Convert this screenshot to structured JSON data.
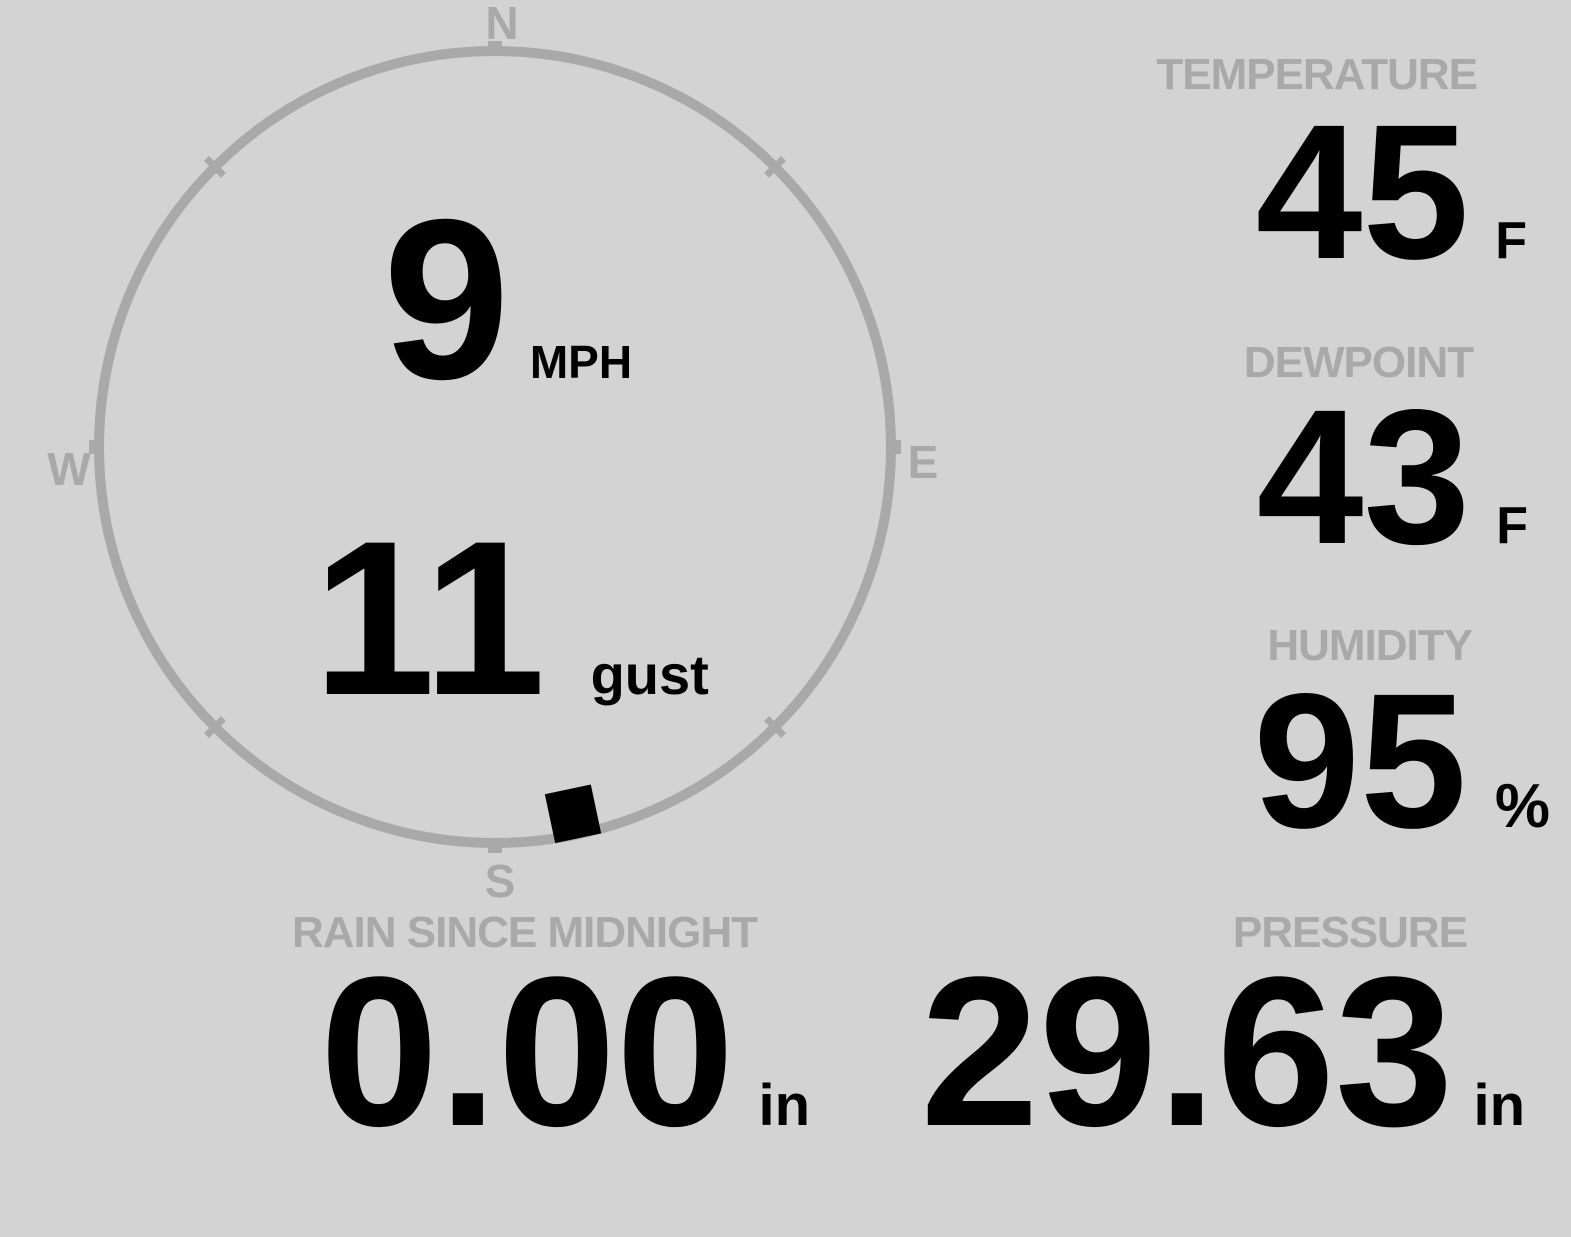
{
  "colors": {
    "background": "#d3d3d3",
    "muted": "#a9a9a9",
    "text": "#000000"
  },
  "wind": {
    "speed_value": "9",
    "speed_unit": "MPH",
    "gust_value": "11",
    "gust_label": "gust",
    "direction_degrees": 168,
    "compass": {
      "north": "N",
      "east": "E",
      "south": "S",
      "west": "W"
    }
  },
  "readings": {
    "temperature": {
      "label": "TEMPERATURE",
      "value": "45",
      "unit": "F"
    },
    "dewpoint": {
      "label": "DEWPOINT",
      "value": "43",
      "unit": "F"
    },
    "humidity": {
      "label": "HUMIDITY",
      "value": "95",
      "unit": "%"
    },
    "rain": {
      "label": "RAIN SINCE MIDNIGHT",
      "value": "0.00",
      "unit": "in"
    },
    "pressure": {
      "label": "PRESSURE",
      "value": "29.63",
      "unit": "in"
    }
  }
}
